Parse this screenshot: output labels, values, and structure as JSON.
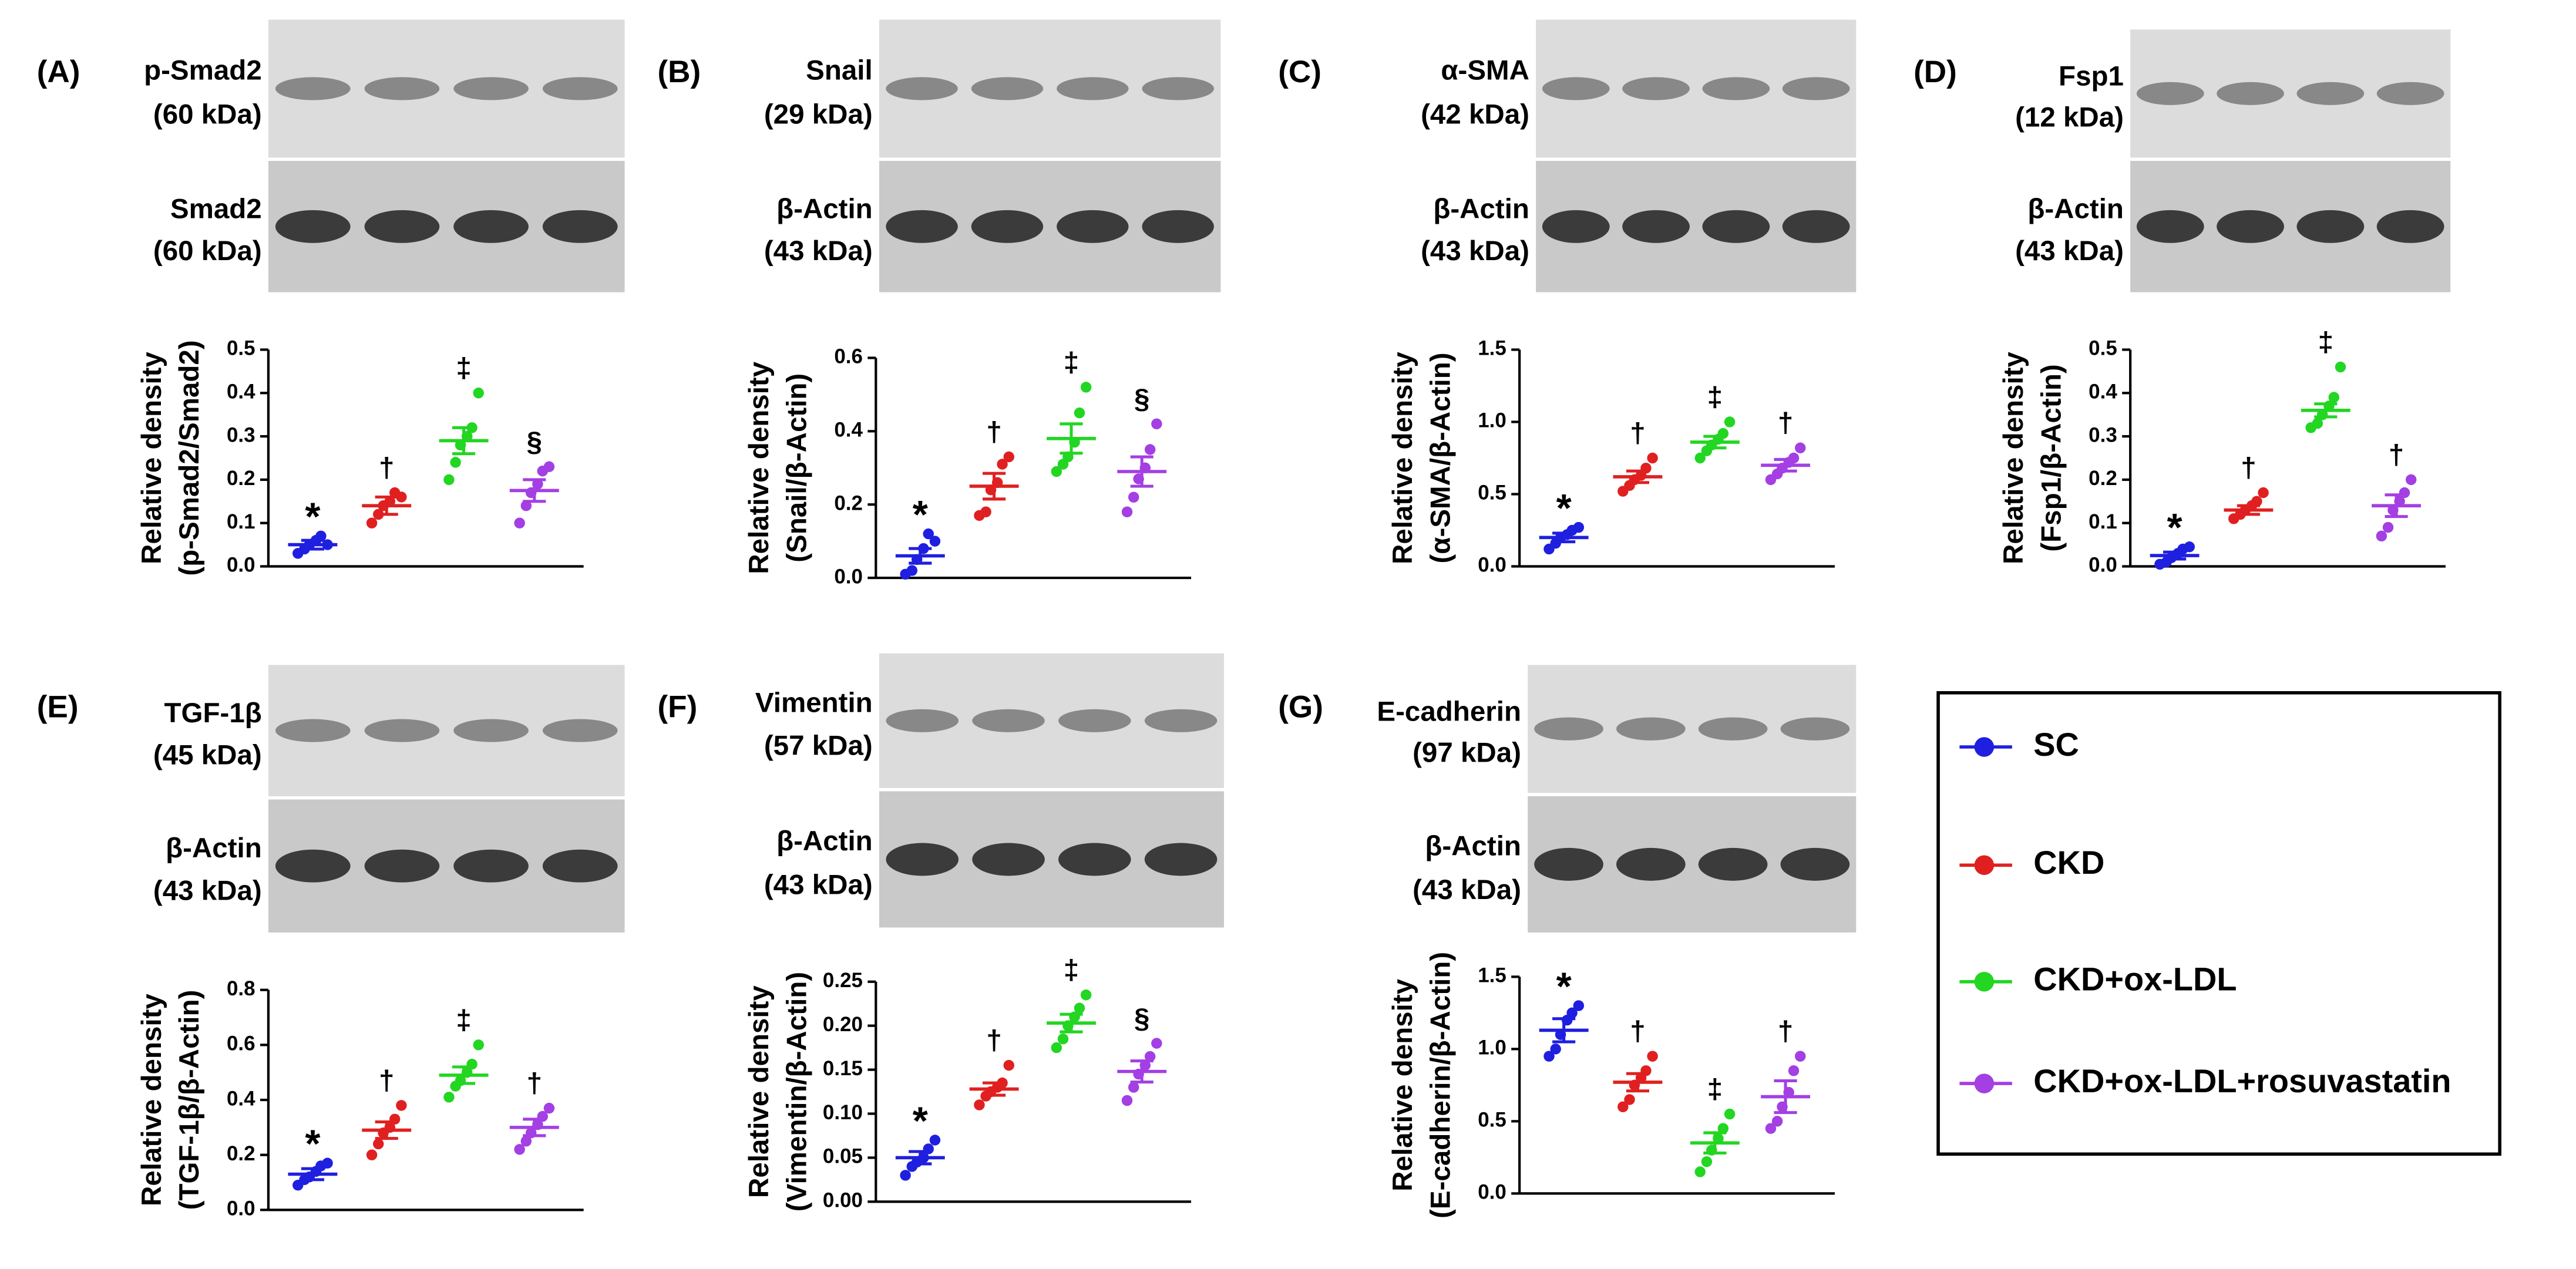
{
  "legend": {
    "items": [
      {
        "name": "SC",
        "color": "#1f1fe0"
      },
      {
        "name": "CKD",
        "color": "#e02020"
      },
      {
        "name": "CKD+ox-LDL",
        "color": "#22d622"
      },
      {
        "name": "CKD+ox-LDL+rosuvastatin",
        "color": "#a33fe3"
      }
    ]
  },
  "chart_data": [
    {
      "type": "dot",
      "panel_label": "(A)",
      "blots": [
        {
          "label": "p-Smad2",
          "size": "(60 kDa)"
        },
        {
          "label": "Smad2",
          "size": "(60 kDa)"
        }
      ],
      "ylabel": [
        "Relative density",
        "(p-Smad2/Smad2)"
      ],
      "ylim": [
        0,
        0.5
      ],
      "yticks": [
        {
          "value": 0,
          "label": "0.0"
        },
        0.1,
        0.2,
        0.3,
        0.4,
        0.5
      ],
      "groups": [
        {
          "values": [
            0.03,
            0.04,
            0.05,
            0.06,
            0.07,
            0.05
          ],
          "mean": 0.05,
          "sem": 0.01,
          "marker": "*"
        },
        {
          "values": [
            0.1,
            0.12,
            0.14,
            0.15,
            0.17,
            0.16
          ],
          "mean": 0.14,
          "sem": 0.02,
          "marker": "†"
        },
        {
          "values": [
            0.2,
            0.24,
            0.28,
            0.3,
            0.32,
            0.4
          ],
          "mean": 0.29,
          "sem": 0.03,
          "marker": "‡"
        },
        {
          "values": [
            0.1,
            0.14,
            0.17,
            0.19,
            0.22,
            0.23
          ],
          "mean": 0.175,
          "sem": 0.025,
          "marker": "§"
        }
      ]
    },
    {
      "type": "dot",
      "panel_label": "(B)",
      "blots": [
        {
          "label": "Snail",
          "size": "(29 kDa)"
        },
        {
          "label": "β-Actin",
          "size": "(43 kDa)"
        }
      ],
      "ylabel": [
        "Relative density",
        "(Snail/β-Actin)"
      ],
      "ylim": [
        0,
        0.6
      ],
      "yticks": [
        {
          "value": 0,
          "label": "0.0"
        },
        0.2,
        0.4,
        0.6
      ],
      "groups": [
        {
          "values": [
            0.01,
            0.02,
            0.05,
            0.08,
            0.12,
            0.1
          ],
          "mean": 0.06,
          "sem": 0.02,
          "marker": "*"
        },
        {
          "values": [
            0.17,
            0.18,
            0.24,
            0.26,
            0.31,
            0.33
          ],
          "mean": 0.25,
          "sem": 0.035,
          "marker": "†"
        },
        {
          "values": [
            0.29,
            0.31,
            0.33,
            0.37,
            0.45,
            0.52
          ],
          "mean": 0.38,
          "sem": 0.04,
          "marker": "‡"
        },
        {
          "values": [
            0.18,
            0.22,
            0.27,
            0.3,
            0.35,
            0.42
          ],
          "mean": 0.29,
          "sem": 0.04,
          "marker": "§"
        }
      ]
    },
    {
      "type": "dot",
      "panel_label": "(C)",
      "blots": [
        {
          "label": "α-SMA",
          "size": "(42 kDa)"
        },
        {
          "label": "β-Actin",
          "size": "(43 kDa)"
        }
      ],
      "ylabel": [
        "Relative density",
        "(α-SMA/β-Actin)"
      ],
      "ylim": [
        0,
        1.5
      ],
      "yticks": [
        {
          "value": 0,
          "label": "0.0"
        },
        0.5,
        {
          "value": 1,
          "label": "1.0"
        },
        1.5
      ],
      "groups": [
        {
          "values": [
            0.12,
            0.16,
            0.2,
            0.22,
            0.25,
            0.27
          ],
          "mean": 0.2,
          "sem": 0.03,
          "marker": "*"
        },
        {
          "values": [
            0.52,
            0.56,
            0.6,
            0.63,
            0.68,
            0.75
          ],
          "mean": 0.62,
          "sem": 0.04,
          "marker": "†"
        },
        {
          "values": [
            0.75,
            0.8,
            0.84,
            0.88,
            0.92,
            1.0
          ],
          "mean": 0.86,
          "sem": 0.04,
          "marker": "‡"
        },
        {
          "values": [
            0.6,
            0.64,
            0.68,
            0.72,
            0.75,
            0.82
          ],
          "mean": 0.7,
          "sem": 0.04,
          "marker": "†"
        }
      ]
    },
    {
      "type": "dot",
      "panel_label": "(D)",
      "blots": [
        {
          "label": "Fsp1",
          "size": "(12 kDa)"
        },
        {
          "label": "β-Actin",
          "size": "(43 kDa)"
        }
      ],
      "ylabel": [
        "Relative density",
        "(Fsp1/β-Actin)"
      ],
      "ylim": [
        0,
        0.5
      ],
      "yticks": [
        {
          "value": 0,
          "label": "0.0"
        },
        0.1,
        0.2,
        0.3,
        0.4,
        0.5
      ],
      "groups": [
        {
          "values": [
            0.005,
            0.01,
            0.02,
            0.03,
            0.04,
            0.045
          ],
          "mean": 0.025,
          "sem": 0.008,
          "marker": "*"
        },
        {
          "values": [
            0.11,
            0.12,
            0.13,
            0.14,
            0.15,
            0.17
          ],
          "mean": 0.13,
          "sem": 0.01,
          "marker": "†"
        },
        {
          "values": [
            0.32,
            0.33,
            0.35,
            0.37,
            0.39,
            0.46
          ],
          "mean": 0.36,
          "sem": 0.015,
          "marker": "‡"
        },
        {
          "values": [
            0.07,
            0.09,
            0.13,
            0.15,
            0.17,
            0.2
          ],
          "mean": 0.14,
          "sem": 0.025,
          "marker": "†"
        }
      ]
    },
    {
      "type": "dot",
      "panel_label": "(E)",
      "blots": [
        {
          "label": "TGF-1β",
          "size": "(45 kDa)"
        },
        {
          "label": "β-Actin",
          "size": "(43 kDa)"
        }
      ],
      "ylabel": [
        "Relative density",
        "(TGF-1β/β-Actin)"
      ],
      "ylim": [
        0,
        0.8
      ],
      "yticks": [
        {
          "value": 0,
          "label": "0.0"
        },
        0.2,
        0.4,
        0.6,
        0.8
      ],
      "groups": [
        {
          "values": [
            0.09,
            0.11,
            0.12,
            0.14,
            0.16,
            0.17
          ],
          "mean": 0.13,
          "sem": 0.02,
          "marker": "*"
        },
        {
          "values": [
            0.2,
            0.24,
            0.28,
            0.3,
            0.33,
            0.38
          ],
          "mean": 0.29,
          "sem": 0.03,
          "marker": "†"
        },
        {
          "values": [
            0.41,
            0.45,
            0.47,
            0.5,
            0.53,
            0.6
          ],
          "mean": 0.49,
          "sem": 0.03,
          "marker": "‡"
        },
        {
          "values": [
            0.22,
            0.25,
            0.28,
            0.31,
            0.34,
            0.37
          ],
          "mean": 0.3,
          "sem": 0.03,
          "marker": "†"
        }
      ]
    },
    {
      "type": "dot",
      "panel_label": "(F)",
      "blots": [
        {
          "label": "Vimentin",
          "size": "(57 kDa)"
        },
        {
          "label": "β-Actin",
          "size": "(43 kDa)"
        }
      ],
      "ylabel": [
        "Relative density",
        "(Vimentin/β-Actin)"
      ],
      "ylim": [
        0,
        0.25
      ],
      "yticks": [
        {
          "value": 0,
          "label": "0.00"
        },
        0.05,
        {
          "value": 0.1,
          "label": "0.10"
        },
        0.15,
        {
          "value": 0.2,
          "label": "0.20"
        },
        0.25
      ],
      "groups": [
        {
          "values": [
            0.03,
            0.04,
            0.045,
            0.05,
            0.06,
            0.07
          ],
          "mean": 0.05,
          "sem": 0.007,
          "marker": "*"
        },
        {
          "values": [
            0.11,
            0.12,
            0.125,
            0.13,
            0.135,
            0.155
          ],
          "mean": 0.128,
          "sem": 0.007,
          "marker": "†"
        },
        {
          "values": [
            0.175,
            0.185,
            0.2,
            0.21,
            0.22,
            0.235
          ],
          "mean": 0.203,
          "sem": 0.01,
          "marker": "‡"
        },
        {
          "values": [
            0.115,
            0.13,
            0.145,
            0.155,
            0.165,
            0.18
          ],
          "mean": 0.148,
          "sem": 0.012,
          "marker": "§"
        }
      ]
    },
    {
      "type": "dot",
      "panel_label": "(G)",
      "blots": [
        {
          "label": "E-cadherin",
          "size": "(97 kDa)"
        },
        {
          "label": "β-Actin",
          "size": "(43 kDa)"
        }
      ],
      "ylabel": [
        "Relative density",
        "(E-cadherin/β-Actin)"
      ],
      "ylim": [
        0,
        1.5
      ],
      "yticks": [
        {
          "value": 0,
          "label": "0.0"
        },
        0.5,
        {
          "value": 1,
          "label": "1.0"
        },
        1.5
      ],
      "groups": [
        {
          "values": [
            0.95,
            1.0,
            1.1,
            1.2,
            1.25,
            1.3
          ],
          "mean": 1.13,
          "sem": 0.08,
          "marker": "*"
        },
        {
          "values": [
            0.6,
            0.65,
            0.75,
            0.8,
            0.85,
            0.95
          ],
          "mean": 0.77,
          "sem": 0.06,
          "marker": "†"
        },
        {
          "values": [
            0.15,
            0.22,
            0.3,
            0.38,
            0.45,
            0.55
          ],
          "mean": 0.35,
          "sem": 0.07,
          "marker": "‡"
        },
        {
          "values": [
            0.45,
            0.5,
            0.6,
            0.7,
            0.85,
            0.95
          ],
          "mean": 0.67,
          "sem": 0.11,
          "marker": "†"
        }
      ]
    }
  ]
}
